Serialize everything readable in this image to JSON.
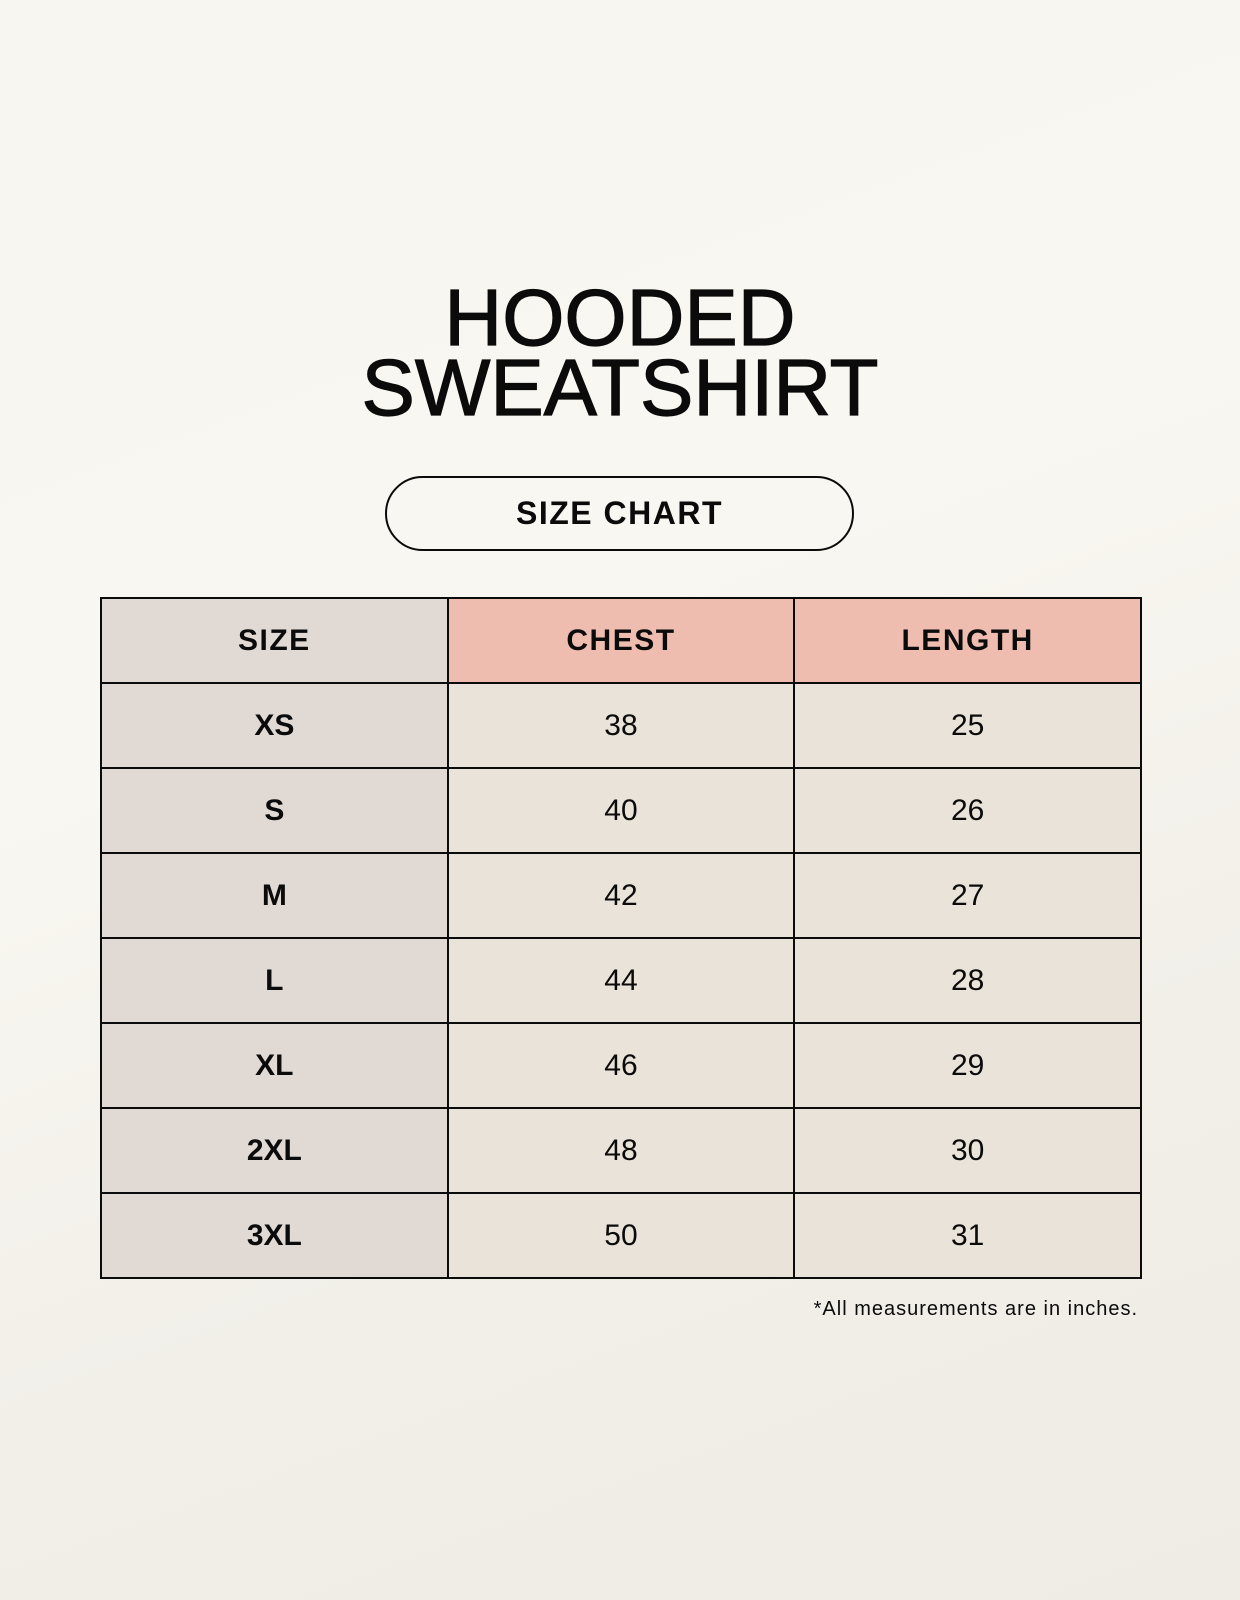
{
  "title_line1": "HOODED",
  "title_line2": "SWEATSHIRT",
  "subtitle": "SIZE CHART",
  "table": {
    "headers": [
      "SIZE",
      "CHEST",
      "LENGTH"
    ],
    "rows": [
      [
        "XS",
        "38",
        "25"
      ],
      [
        "S",
        "40",
        "26"
      ],
      [
        "M",
        "42",
        "27"
      ],
      [
        "L",
        "44",
        "28"
      ],
      [
        "XL",
        "46",
        "29"
      ],
      [
        "2XL",
        "48",
        "30"
      ],
      [
        "3XL",
        "50",
        "31"
      ]
    ]
  },
  "footnote": "*All measurements are in inches.",
  "colors": {
    "size_column": "#e0d9d4",
    "header_accent": "#eebdb0",
    "cell": "#eae3d9"
  }
}
